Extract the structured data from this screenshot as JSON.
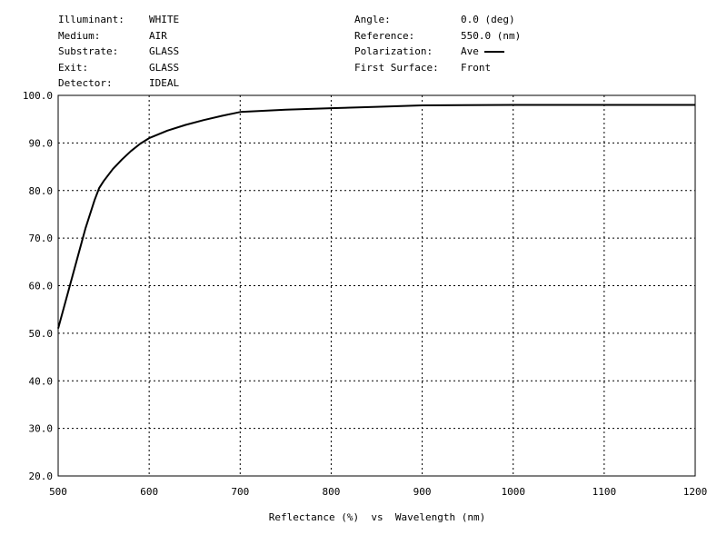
{
  "header": {
    "left": [
      {
        "key": "Illuminant:",
        "value": "WHITE"
      },
      {
        "key": "Medium:",
        "value": "AIR"
      },
      {
        "key": "Substrate:",
        "value": "GLASS"
      },
      {
        "key": "Exit:",
        "value": "GLASS"
      },
      {
        "key": "Detector:",
        "value": "IDEAL"
      }
    ],
    "right": [
      {
        "key": "Angle:",
        "value": "0.0 (deg)"
      },
      {
        "key": "Reference:",
        "value": "550.0 (nm)"
      },
      {
        "key": "Polarization:",
        "value": "Ave"
      },
      {
        "key": "First Surface:",
        "value": "Front"
      }
    ]
  },
  "chart_data": {
    "type": "line",
    "title": "",
    "xlabel": "Reflectance (%)  vs  Wavelength (nm)",
    "ylabel": "",
    "xlim": [
      500,
      1200
    ],
    "ylim": [
      20,
      100
    ],
    "x_ticks": [
      "500",
      "600",
      "700",
      "800",
      "900",
      "1000",
      "1100",
      "1200"
    ],
    "y_ticks": [
      "20.0",
      "30.0",
      "40.0",
      "50.0",
      "60.0",
      "70.0",
      "80.0",
      "90.0",
      "100.0"
    ],
    "grid": true,
    "grid_style": "dotted",
    "legend": {
      "label": "Ave",
      "placement": "top-right header"
    },
    "series": [
      {
        "name": "Ave",
        "color": "#000000",
        "x": [
          500,
          510,
          520,
          530,
          540,
          545,
          550,
          560,
          570,
          580,
          590,
          600,
          620,
          640,
          660,
          680,
          700,
          750,
          800,
          850,
          900,
          1000,
          1100,
          1200
        ],
        "y": [
          51,
          58,
          65,
          72,
          78,
          80.5,
          82,
          84.5,
          86.5,
          88.3,
          89.8,
          91,
          92.6,
          93.8,
          94.8,
          95.7,
          96.5,
          97.0,
          97.3,
          97.6,
          97.9,
          98.0,
          98.0,
          98.0
        ]
      }
    ]
  }
}
